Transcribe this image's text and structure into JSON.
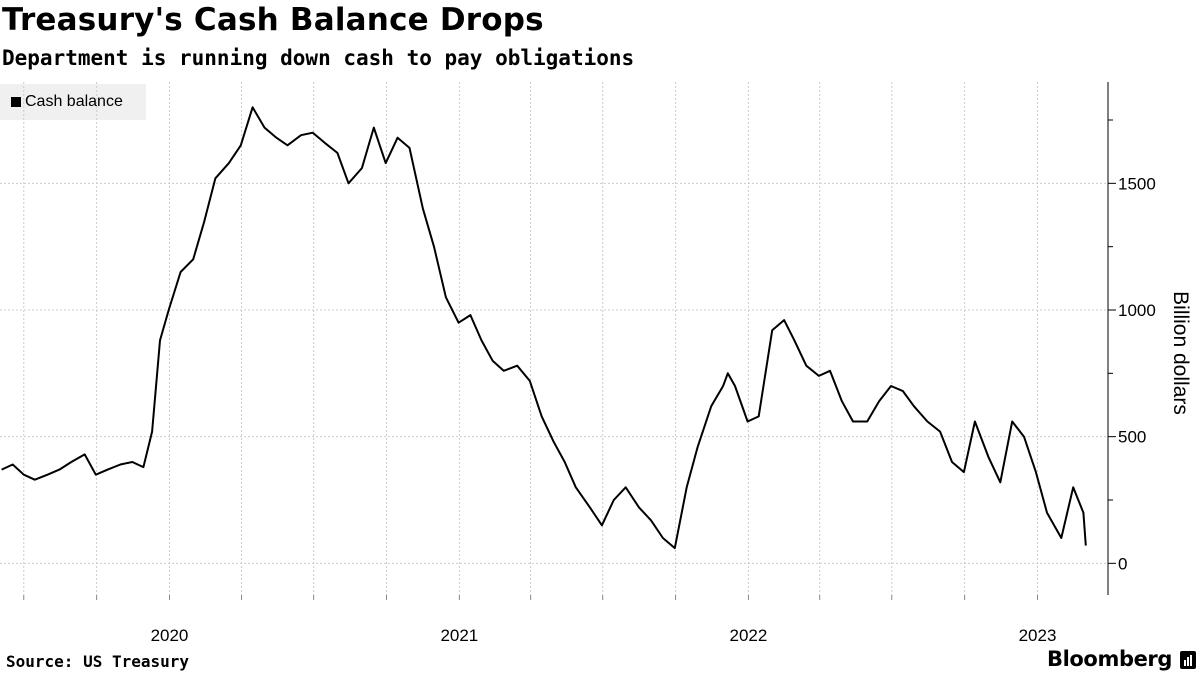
{
  "title": "Treasury's Cash Balance Drops",
  "subtitle": "Department is running down cash to pay obligations",
  "source": "Source: US Treasury",
  "brand": "Bloomberg",
  "colors": {
    "line": "#000000",
    "grid": "#cccccc",
    "legend_bg": "#f0f0f0"
  },
  "chart_data": {
    "type": "line",
    "xlabel": "",
    "ylabel": "Billion dollars",
    "legend_position": "top-left",
    "grid": true,
    "ylim": [
      -125,
      1900
    ],
    "xlim": [
      "2019-06-01",
      "2023-03-31"
    ],
    "yticks": [
      0,
      500,
      1000,
      1500
    ],
    "ytick_labels": [
      "0",
      "500",
      "1000",
      "1500"
    ],
    "xtick_labels": [
      "2020",
      "2021",
      "2022",
      "2023"
    ],
    "x_label_dates": [
      "2020-01-01",
      "2021-01-01",
      "2022-01-01",
      "2023-01-01"
    ],
    "month_ticks": [
      "2019-07-01",
      "2019-10-01",
      "2020-01-01",
      "2020-04-01",
      "2020-07-01",
      "2020-10-01",
      "2021-01-01",
      "2021-04-01",
      "2021-07-01",
      "2021-10-01",
      "2022-01-01",
      "2022-04-01",
      "2022-07-01",
      "2022-10-01",
      "2023-01-01"
    ],
    "series": [
      {
        "name": "Cash balance",
        "x": [
          "2019-06-03",
          "2019-06-17",
          "2019-07-01",
          "2019-07-15",
          "2019-07-31",
          "2019-08-15",
          "2019-08-30",
          "2019-09-16",
          "2019-09-30",
          "2019-10-15",
          "2019-10-31",
          "2019-11-15",
          "2019-11-29",
          "2019-12-10",
          "2019-12-20",
          "2019-12-31",
          "2020-01-15",
          "2020-01-31",
          "2020-02-14",
          "2020-02-28",
          "2020-03-16",
          "2020-03-31",
          "2020-04-15",
          "2020-04-30",
          "2020-05-15",
          "2020-05-29",
          "2020-06-15",
          "2020-06-30",
          "2020-07-15",
          "2020-07-31",
          "2020-08-14",
          "2020-08-31",
          "2020-09-15",
          "2020-09-30",
          "2020-10-15",
          "2020-10-30",
          "2020-11-16",
          "2020-11-30",
          "2020-12-15",
          "2020-12-31",
          "2021-01-15",
          "2021-01-29",
          "2021-02-12",
          "2021-02-26",
          "2021-03-15",
          "2021-03-31",
          "2021-04-15",
          "2021-04-30",
          "2021-05-14",
          "2021-05-28",
          "2021-06-15",
          "2021-06-30",
          "2021-07-15",
          "2021-07-30",
          "2021-08-16",
          "2021-08-31",
          "2021-09-15",
          "2021-09-30",
          "2021-10-15",
          "2021-10-29",
          "2021-11-15",
          "2021-11-30",
          "2021-12-06",
          "2021-12-15",
          "2021-12-31",
          "2022-01-14",
          "2022-01-31",
          "2022-02-15",
          "2022-02-28",
          "2022-03-15",
          "2022-03-31",
          "2022-04-14",
          "2022-04-29",
          "2022-05-13",
          "2022-05-31",
          "2022-06-15",
          "2022-06-30",
          "2022-07-15",
          "2022-07-29",
          "2022-08-15",
          "2022-08-31",
          "2022-09-15",
          "2022-09-30",
          "2022-10-14",
          "2022-10-31",
          "2022-11-15",
          "2022-11-30",
          "2022-12-15",
          "2022-12-30",
          "2023-01-13",
          "2023-01-31",
          "2023-02-15",
          "2023-02-28",
          "2023-03-03"
        ],
        "values": [
          370,
          390,
          350,
          330,
          350,
          370,
          400,
          430,
          350,
          370,
          390,
          400,
          380,
          520,
          880,
          1000,
          1150,
          1200,
          1350,
          1520,
          1580,
          1650,
          1800,
          1720,
          1680,
          1650,
          1690,
          1700,
          1660,
          1620,
          1500,
          1560,
          1720,
          1580,
          1680,
          1640,
          1400,
          1250,
          1050,
          950,
          980,
          880,
          800,
          760,
          780,
          720,
          580,
          480,
          400,
          300,
          220,
          150,
          250,
          300,
          220,
          170,
          100,
          60,
          300,
          460,
          620,
          700,
          750,
          700,
          560,
          580,
          920,
          960,
          880,
          780,
          740,
          760,
          640,
          560,
          560,
          640,
          700,
          680,
          620,
          560,
          520,
          400,
          360,
          560,
          420,
          320,
          560,
          500,
          360,
          200,
          100,
          300,
          200,
          70
        ]
      }
    ]
  }
}
